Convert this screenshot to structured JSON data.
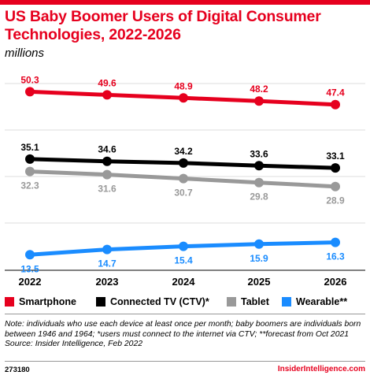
{
  "header": {
    "title": "US Baby Boomer Users of Digital Consumer Technologies, 2022-2026",
    "subtitle": "millions"
  },
  "colors": {
    "accent": "#e6001e",
    "smartphone": "#e6001e",
    "ctv": "#000000",
    "tablet": "#999999",
    "wearable": "#1a8cff"
  },
  "chart_data": {
    "type": "line",
    "title": "US Baby Boomer Users of Digital Consumer Technologies, 2022-2026",
    "subtitle": "millions",
    "x": [
      "2022",
      "2023",
      "2024",
      "2025",
      "2026"
    ],
    "ylim": [
      10,
      55
    ],
    "grid": true,
    "legend_position": "bottom",
    "series": [
      {
        "name": "Smartphone",
        "color": "#e6001e",
        "values": [
          50.3,
          49.6,
          48.9,
          48.2,
          47.4
        ],
        "labels": [
          "50.3",
          "49.6",
          "48.9",
          "48.2",
          "47.4"
        ],
        "label_pos": "above"
      },
      {
        "name": "Connected TV (CTV)*",
        "color": "#000000",
        "values": [
          35.1,
          34.6,
          34.2,
          33.6,
          33.1
        ],
        "labels": [
          "35.1",
          "34.6",
          "34.2",
          "33.6",
          "33.1"
        ],
        "label_pos": "above"
      },
      {
        "name": "Tablet",
        "color": "#999999",
        "values": [
          32.3,
          31.6,
          30.7,
          29.8,
          28.9
        ],
        "labels": [
          "32.3",
          "31.6",
          "30.7",
          "29.8",
          "28.9"
        ],
        "label_pos": "below"
      },
      {
        "name": "Wearable**",
        "color": "#1a8cff",
        "values": [
          13.5,
          14.7,
          15.4,
          15.9,
          16.3
        ],
        "labels": [
          "13.5",
          "14.7",
          "15.4",
          "15.9",
          "16.3"
        ],
        "label_pos": "below"
      }
    ]
  },
  "legend": [
    {
      "label": "Smartphone",
      "color": "#e6001e"
    },
    {
      "label": "Connected TV (CTV)*",
      "color": "#000000"
    },
    {
      "label": "Tablet",
      "color": "#999999"
    },
    {
      "label": "Wearable**",
      "color": "#1a8cff"
    }
  ],
  "footer": {
    "note": "Note: individuals who use each device at least once per month; baby boomers are individuals born between 1946 and 1964; *users must connect to the internet via CTV; **forecast from Oct 2021",
    "source": "Source: Insider Intelligence, Feb 2022",
    "id": "273180",
    "brand": "InsiderIntelligence.com"
  }
}
